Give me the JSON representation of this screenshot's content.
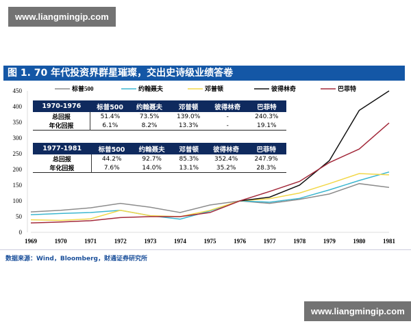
{
  "watermark": "www.liangmingip.com",
  "title": "图 1. 70 年代投资界群星璀璨，交出史诗级业绩答卷",
  "source": "数据来源：Wind，Bloomberg，财通证券研究所",
  "tables": [
    {
      "header": [
        "1970-1976",
        "标普500",
        "约翰聂夫",
        "邓普顿",
        "彼得林奇",
        "巴菲特"
      ],
      "rows": [
        [
          "总回报",
          "51.4%",
          "73.5%",
          "139.0%",
          "-",
          "240.3%"
        ],
        [
          "年化回报",
          "6.1%",
          "8.2%",
          "13.3%",
          "-",
          "19.1%"
        ]
      ]
    },
    {
      "header": [
        "1977-1981",
        "标普500",
        "约翰聂夫",
        "邓普顿",
        "彼得林奇",
        "巴菲特"
      ],
      "rows": [
        [
          "总回报",
          "44.2%",
          "92.7%",
          "85.3%",
          "352.4%",
          "247.9%"
        ],
        [
          "年化回报",
          "7.6%",
          "14.0%",
          "13.1%",
          "35.2%",
          "28.3%"
        ]
      ]
    }
  ],
  "chart_data": {
    "type": "line",
    "x": [
      1969,
      1970,
      1971,
      1972,
      1973,
      1974,
      1975,
      1976,
      1977,
      1978,
      1979,
      1980,
      1981
    ],
    "ylim": [
      0,
      450
    ],
    "yticks": [
      0,
      50,
      100,
      150,
      200,
      250,
      300,
      350,
      400,
      450
    ],
    "legend_position": "top",
    "series": [
      {
        "name": "标普500",
        "color": "#8c8c8c",
        "values": [
          65,
          70,
          78,
          92,
          80,
          63,
          87,
          100,
          92,
          105,
          122,
          155,
          143
        ]
      },
      {
        "name": "约翰聂夫",
        "color": "#3bb6d0",
        "values": [
          56,
          60,
          63,
          70,
          53,
          42,
          68,
          100,
          96,
          108,
          135,
          165,
          192
        ]
      },
      {
        "name": "邓普顿",
        "color": "#f2d84a",
        "values": [
          40,
          38,
          43,
          70,
          53,
          50,
          70,
          100,
          107,
          125,
          155,
          187,
          183
        ]
      },
      {
        "name": "彼得林奇",
        "color": "#111111",
        "values": [
          null,
          null,
          null,
          null,
          null,
          null,
          null,
          100,
          112,
          150,
          228,
          388,
          450
        ]
      },
      {
        "name": "巴菲特",
        "color": "#a3293a",
        "values": [
          30,
          33,
          37,
          47,
          50,
          50,
          63,
          100,
          130,
          162,
          222,
          265,
          348
        ]
      }
    ]
  }
}
